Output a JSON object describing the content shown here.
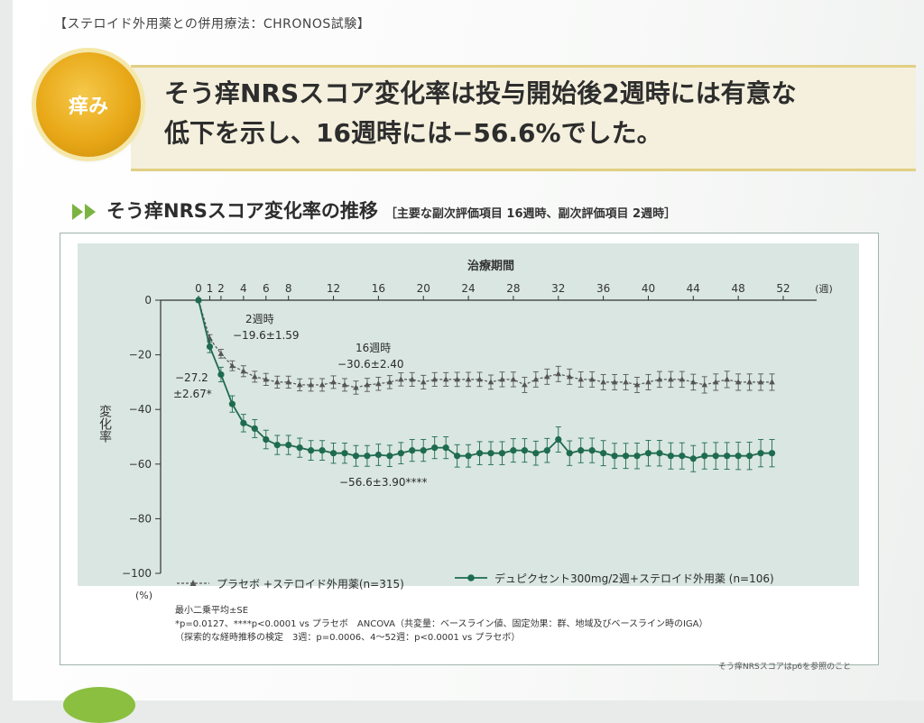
{
  "header": {
    "tag": "【ステロイド外用薬との併用療法：CHRONOS試験】",
    "badge": "痒み",
    "headline_1": "そう痒NRSスコア変化率は投与開始後2週時には有意な",
    "headline_2": "低下を示し、16週時には−56.6%でした。"
  },
  "section": {
    "title": "そう痒NRSスコア変化率の推移",
    "subtitle": "［主要な副次評価項目 16週時、副次評価項目 2週時］"
  },
  "chart_data": {
    "type": "line",
    "xlabel": "治療期間",
    "xunit": "(週)",
    "ylabel": "変化率",
    "yunit": "(%)",
    "xlim": [
      0,
      52
    ],
    "ylim": [
      -100,
      0
    ],
    "x_ticks": [
      0,
      1,
      2,
      4,
      6,
      8,
      12,
      16,
      20,
      24,
      28,
      32,
      36,
      40,
      44,
      48,
      52
    ],
    "y_ticks": [
      0,
      -20,
      -40,
      -60,
      -80,
      -100
    ],
    "series": [
      {
        "name": "プラセボ +ステロイド外用薬(n=315)",
        "color": "#555555",
        "marker": "triangle",
        "x": [
          0,
          1,
          2,
          3,
          4,
          5,
          6,
          7,
          8,
          9,
          10,
          11,
          12,
          13,
          14,
          15,
          16,
          17,
          18,
          19,
          20,
          21,
          22,
          23,
          24,
          25,
          26,
          27,
          28,
          29,
          30,
          31,
          32,
          33,
          34,
          35,
          36,
          37,
          38,
          39,
          40,
          41,
          42,
          43,
          44,
          45,
          46,
          47,
          48,
          49,
          50,
          51
        ],
        "y": [
          0,
          -14,
          -19.6,
          -24,
          -26,
          -28,
          -29,
          -30,
          -30,
          -31,
          -31,
          -31,
          -30,
          -31,
          -32,
          -31,
          -30.6,
          -30,
          -29,
          -29,
          -30,
          -29,
          -29,
          -29,
          -29,
          -29,
          -30,
          -29,
          -29,
          -31,
          -29,
          -28,
          -27,
          -28,
          -29,
          -29,
          -30,
          -30,
          -30,
          -31,
          -30,
          -29,
          -29,
          -29,
          -30,
          -31,
          -30,
          -29,
          -30,
          -30,
          -30,
          -30
        ],
        "err": [
          0,
          1.4,
          1.59,
          1.8,
          2,
          2,
          2.2,
          2.2,
          2.2,
          2.2,
          2.3,
          2.3,
          2.3,
          2.3,
          2.4,
          2.4,
          2.4,
          2.4,
          2.4,
          2.5,
          2.5,
          2.5,
          2.5,
          2.6,
          2.6,
          2.6,
          2.6,
          2.7,
          2.7,
          2.8,
          2.8,
          2.8,
          2.8,
          2.8,
          2.8,
          2.8,
          2.8,
          2.8,
          2.8,
          2.8,
          2.8,
          2.9,
          2.9,
          2.9,
          2.9,
          3,
          3,
          3,
          3,
          3,
          3,
          3
        ]
      },
      {
        "name": "デュピクセント300mg/2週+ステロイド外用薬 (n=106)",
        "color": "#1e6b4f",
        "marker": "circle",
        "x": [
          0,
          1,
          2,
          3,
          4,
          5,
          6,
          7,
          8,
          9,
          10,
          11,
          12,
          13,
          14,
          15,
          16,
          17,
          18,
          19,
          20,
          21,
          22,
          23,
          24,
          25,
          26,
          27,
          28,
          29,
          30,
          31,
          32,
          33,
          34,
          35,
          36,
          37,
          38,
          39,
          40,
          41,
          42,
          43,
          44,
          45,
          46,
          47,
          48,
          49,
          50,
          51
        ],
        "y": [
          0,
          -17,
          -27.2,
          -38,
          -45,
          -47,
          -51,
          -53,
          -53,
          -54,
          -55,
          -55,
          -56,
          -56,
          -57,
          -57,
          -56.6,
          -57,
          -56,
          -55,
          -55,
          -54,
          -54,
          -57,
          -57,
          -56,
          -56,
          -56,
          -55,
          -55,
          -56,
          -55,
          -51,
          -56,
          -55,
          -55,
          -56,
          -57,
          -57,
          -57,
          -56,
          -56,
          -57,
          -57,
          -58,
          -57,
          -57,
          -57,
          -57,
          -57,
          -56,
          -56
        ],
        "err": [
          0,
          2.2,
          2.67,
          3,
          3.2,
          3.3,
          3.4,
          3.5,
          3.5,
          3.5,
          3.6,
          3.6,
          3.7,
          3.7,
          3.8,
          3.8,
          3.9,
          3.9,
          3.9,
          4,
          4,
          4,
          4,
          4.1,
          4.1,
          4.2,
          4.2,
          4.2,
          4.3,
          4.3,
          4.4,
          4.4,
          4.6,
          4.5,
          4.5,
          4.5,
          4.6,
          4.6,
          4.6,
          4.7,
          4.7,
          4.7,
          4.8,
          4.8,
          4.8,
          4.8,
          4.9,
          4.9,
          5,
          5,
          5,
          5
        ]
      }
    ],
    "annotations": [
      {
        "text": "2週時",
        "x": 2,
        "y": -19.6
      },
      {
        "text": "−19.6±1.59",
        "x": 2,
        "y": -19.6
      },
      {
        "text": "16週時",
        "x": 16,
        "y": -30.6
      },
      {
        "text": "−30.6±2.40",
        "x": 16,
        "y": -30.6
      },
      {
        "text": "−27.2",
        "x": 2,
        "y": -27.2
      },
      {
        "text": "±2.67*",
        "x": 2,
        "y": -27.2
      },
      {
        "text": "−56.6±3.90****",
        "x": 16,
        "y": -56.6
      }
    ],
    "legend_placement": "bottom"
  },
  "footnotes": [
    "最小二乗平均±SE",
    "*p=0.0127、****p<0.0001 vs プラセボ　ANCOVA（共変量：ベースライン値、固定効果：群、地域及びベースライン時のIGA）",
    "（探索的な経時推移の検定　3週：p=0.0006、4～52週：p<0.0001 vs プラセボ）"
  ],
  "bottom_note": "そう痒NRSスコアはp6を参照のこと"
}
